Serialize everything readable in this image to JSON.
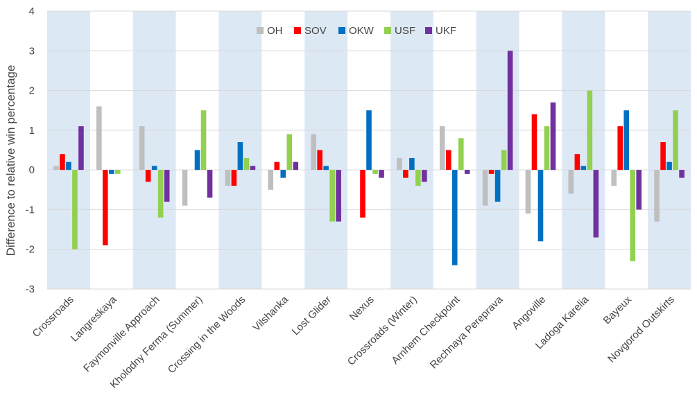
{
  "chart_data": {
    "type": "bar",
    "title": "",
    "xlabel": "",
    "ylabel": "Difference to relative win percentage",
    "ylim": [
      -3,
      4
    ],
    "yticks": [
      -3,
      -2,
      -1,
      0,
      1,
      2,
      3,
      4
    ],
    "legend_position": "top",
    "alternating_band_color": "#dde8f5",
    "categories": [
      "Crossroads",
      "Langreskaya",
      "Faymonville Approach",
      "Kholodny Ferma (Summer)",
      "Crossing in the Woods",
      "Vilshanka",
      "Lost Glider",
      "Nexus",
      "Crossroads (Winter)",
      "Arnhem Checkpoint",
      "Rechnaya Perepravа",
      "Angoville",
      "Ladoga Karelia",
      "Bayeux",
      "Novgorod Outskirts"
    ],
    "series": [
      {
        "name": "OH",
        "color": "#bfbfbf",
        "values": [
          0.1,
          1.6,
          1.1,
          -0.9,
          -0.4,
          -0.5,
          0.9,
          0.0,
          0.3,
          1.1,
          -0.9,
          -1.1,
          -0.6,
          -0.4,
          -1.3
        ]
      },
      {
        "name": "SOV",
        "color": "#ff0000",
        "values": [
          0.4,
          -1.9,
          -0.3,
          0.0,
          -0.4,
          0.2,
          0.5,
          -1.2,
          -0.2,
          0.5,
          -0.1,
          1.4,
          0.4,
          1.1,
          0.7
        ]
      },
      {
        "name": "OKW",
        "color": "#0070c0",
        "values": [
          0.2,
          -0.1,
          0.1,
          0.5,
          0.7,
          -0.2,
          0.1,
          1.5,
          0.3,
          -2.4,
          -0.8,
          -1.8,
          0.1,
          1.5,
          0.2
        ]
      },
      {
        "name": "USF",
        "color": "#92d050",
        "values": [
          -2.0,
          -0.1,
          -1.2,
          1.5,
          0.3,
          0.9,
          -1.3,
          -0.1,
          -0.4,
          0.8,
          0.5,
          1.1,
          2.0,
          -2.3,
          1.5
        ]
      },
      {
        "name": "UKF",
        "color": "#7030a0",
        "values": [
          1.1,
          0.0,
          -0.8,
          -0.7,
          0.1,
          0.2,
          -1.3,
          -0.2,
          -0.3,
          -0.1,
          3.0,
          1.7,
          -1.7,
          -1.0,
          -0.2
        ]
      }
    ]
  }
}
